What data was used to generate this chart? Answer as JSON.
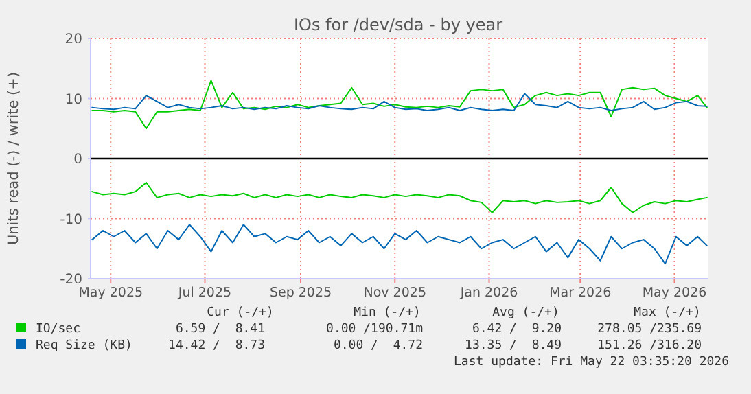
{
  "chart_data": {
    "type": "line",
    "title": "IOs for /dev/sda - by year",
    "ylabel": "Units read (-) / write (+)",
    "x": [
      "2025-04-19",
      "2025-04-26",
      "2025-05-03",
      "2025-05-10",
      "2025-05-17",
      "2025-05-24",
      "2025-05-31",
      "2025-06-07",
      "2025-06-14",
      "2025-06-21",
      "2025-06-28",
      "2025-07-05",
      "2025-07-12",
      "2025-07-19",
      "2025-07-26",
      "2025-08-02",
      "2025-08-09",
      "2025-08-16",
      "2025-08-23",
      "2025-08-30",
      "2025-09-06",
      "2025-09-13",
      "2025-09-20",
      "2025-09-27",
      "2025-10-04",
      "2025-10-11",
      "2025-10-18",
      "2025-10-25",
      "2025-11-01",
      "2025-11-08",
      "2025-11-15",
      "2025-11-22",
      "2025-11-29",
      "2025-12-06",
      "2025-12-13",
      "2025-12-20",
      "2025-12-27",
      "2026-01-03",
      "2026-01-10",
      "2026-01-17",
      "2026-01-24",
      "2026-01-31",
      "2026-02-07",
      "2026-02-14",
      "2026-02-21",
      "2026-02-28",
      "2026-03-07",
      "2026-03-14",
      "2026-03-21",
      "2026-03-28",
      "2026-04-04",
      "2026-04-11",
      "2026-04-18",
      "2026-04-25",
      "2026-05-02",
      "2026-05-09",
      "2026-05-16",
      "2026-05-22"
    ],
    "series": [
      {
        "name": "IO/sec",
        "color": "#00cc00",
        "values": [
          8,
          8,
          7.8,
          8,
          7.8,
          5,
          7.8,
          7.8,
          8,
          8.2,
          8,
          13,
          8.5,
          11,
          8.3,
          8.5,
          8.2,
          8.7,
          8.5,
          9,
          8.5,
          8.8,
          9,
          9.2,
          11.8,
          9,
          9.2,
          8.7,
          9,
          8.6,
          8.5,
          8.7,
          8.5,
          8.8,
          8.6,
          11.3,
          11.5,
          11.3,
          11.5,
          8.5,
          9,
          10.5,
          11,
          10.5,
          10.8,
          10.5,
          11,
          11,
          7,
          11.5,
          11.8,
          11.5,
          11.7,
          10.5,
          10,
          9.5,
          10.5,
          8.5
        ]
      },
      {
        "name": "Req Size (KB)",
        "color": "#0066b3",
        "values": [
          8.5,
          8.3,
          8.2,
          8.5,
          8.3,
          10.5,
          9.5,
          8.5,
          9,
          8.5,
          8.3,
          8.5,
          8.8,
          8.3,
          8.5,
          8.2,
          8.5,
          8.3,
          8.8,
          8.5,
          8.3,
          8.8,
          8.5,
          8.3,
          8.2,
          8.5,
          8.3,
          9.5,
          8.5,
          8.2,
          8.3,
          8,
          8.2,
          8.5,
          8,
          8.5,
          8.2,
          8,
          8.2,
          8,
          10.8,
          9,
          8.8,
          8.5,
          9.5,
          8.5,
          8.3,
          8.5,
          8,
          8.3,
          8.5,
          9.5,
          8.2,
          8.5,
          9.3,
          9.5,
          8.8,
          8.7
        ]
      },
      {
        "color": "#00cc00",
        "values": [
          -5.5,
          -6,
          -5.8,
          -6,
          -5.5,
          -4,
          -6.5,
          -6,
          -5.8,
          -6.5,
          -6,
          -6.3,
          -6,
          -6.2,
          -5.8,
          -6.5,
          -6,
          -6.5,
          -6,
          -6.3,
          -6,
          -6.5,
          -6,
          -6.3,
          -6.5,
          -6,
          -6.2,
          -6.5,
          -6,
          -6.3,
          -6,
          -6.2,
          -6.5,
          -6,
          -6.2,
          -7,
          -7.3,
          -9,
          -7,
          -7.2,
          -7,
          -7.5,
          -7,
          -7.3,
          -7.2,
          -7,
          -7.5,
          -7,
          -4.8,
          -7.5,
          -9,
          -7.8,
          -7.2,
          -7.5,
          -7,
          -7.2,
          -6.8,
          -6.5
        ]
      },
      {
        "color": "#0066b3",
        "values": [
          -13.5,
          -12,
          -13,
          -12,
          -14,
          -12.5,
          -15,
          -12,
          -13.5,
          -11,
          -13,
          -15.5,
          -12,
          -14,
          -11,
          -13,
          -12.5,
          -14,
          -13,
          -13.5,
          -12,
          -14,
          -13,
          -14.5,
          -12.5,
          -14,
          -13,
          -15,
          -12.5,
          -13.5,
          -12,
          -14,
          -13,
          -13.5,
          -14,
          -13,
          -15,
          -14,
          -13.5,
          -15,
          -14,
          -13,
          -15.5,
          -14,
          -16.5,
          -13.5,
          -15,
          -17,
          -13,
          -15,
          -14,
          -13.5,
          -15,
          -17.5,
          -13,
          -14.5,
          -13,
          -14.5
        ]
      }
    ],
    "xlim": [
      "2025-04-18",
      "2026-05-23"
    ],
    "xticks": [
      {
        "value": "2025-05-01",
        "label": "May 2025"
      },
      {
        "value": "2025-07-01",
        "label": "Jul 2025"
      },
      {
        "value": "2025-09-01",
        "label": "Sep 2025"
      },
      {
        "value": "2025-11-01",
        "label": "Nov 2025"
      },
      {
        "value": "2026-01-01",
        "label": "Jan 2026"
      },
      {
        "value": "2026-03-01",
        "label": "Mar 2026"
      },
      {
        "value": "2026-05-01",
        "label": "May 2026"
      }
    ],
    "ylim": [
      -20,
      20
    ],
    "yticks": [
      -20,
      -10,
      0,
      10,
      20
    ],
    "ref_lines": [
      {
        "axis": "y",
        "value": 0,
        "color": "#000000"
      }
    ],
    "grid": true,
    "legend": "bottom",
    "marker": "none",
    "line_style": "solid",
    "annotations": [
      "Cur (-/+)",
      "Min (-/+)",
      "Avg (-/+)",
      "Max (-/+)",
      "6.59 /  8.41",
      "0.00 /190.71m",
      "6.42 /  9.20",
      "278.05 /235.69",
      "14.42 /  8.73",
      "0.00 /  4.72",
      "13.35 /  8.49",
      "151.26 /316.20",
      "Last update: Fri May 22 03:35:20 2026"
    ]
  }
}
